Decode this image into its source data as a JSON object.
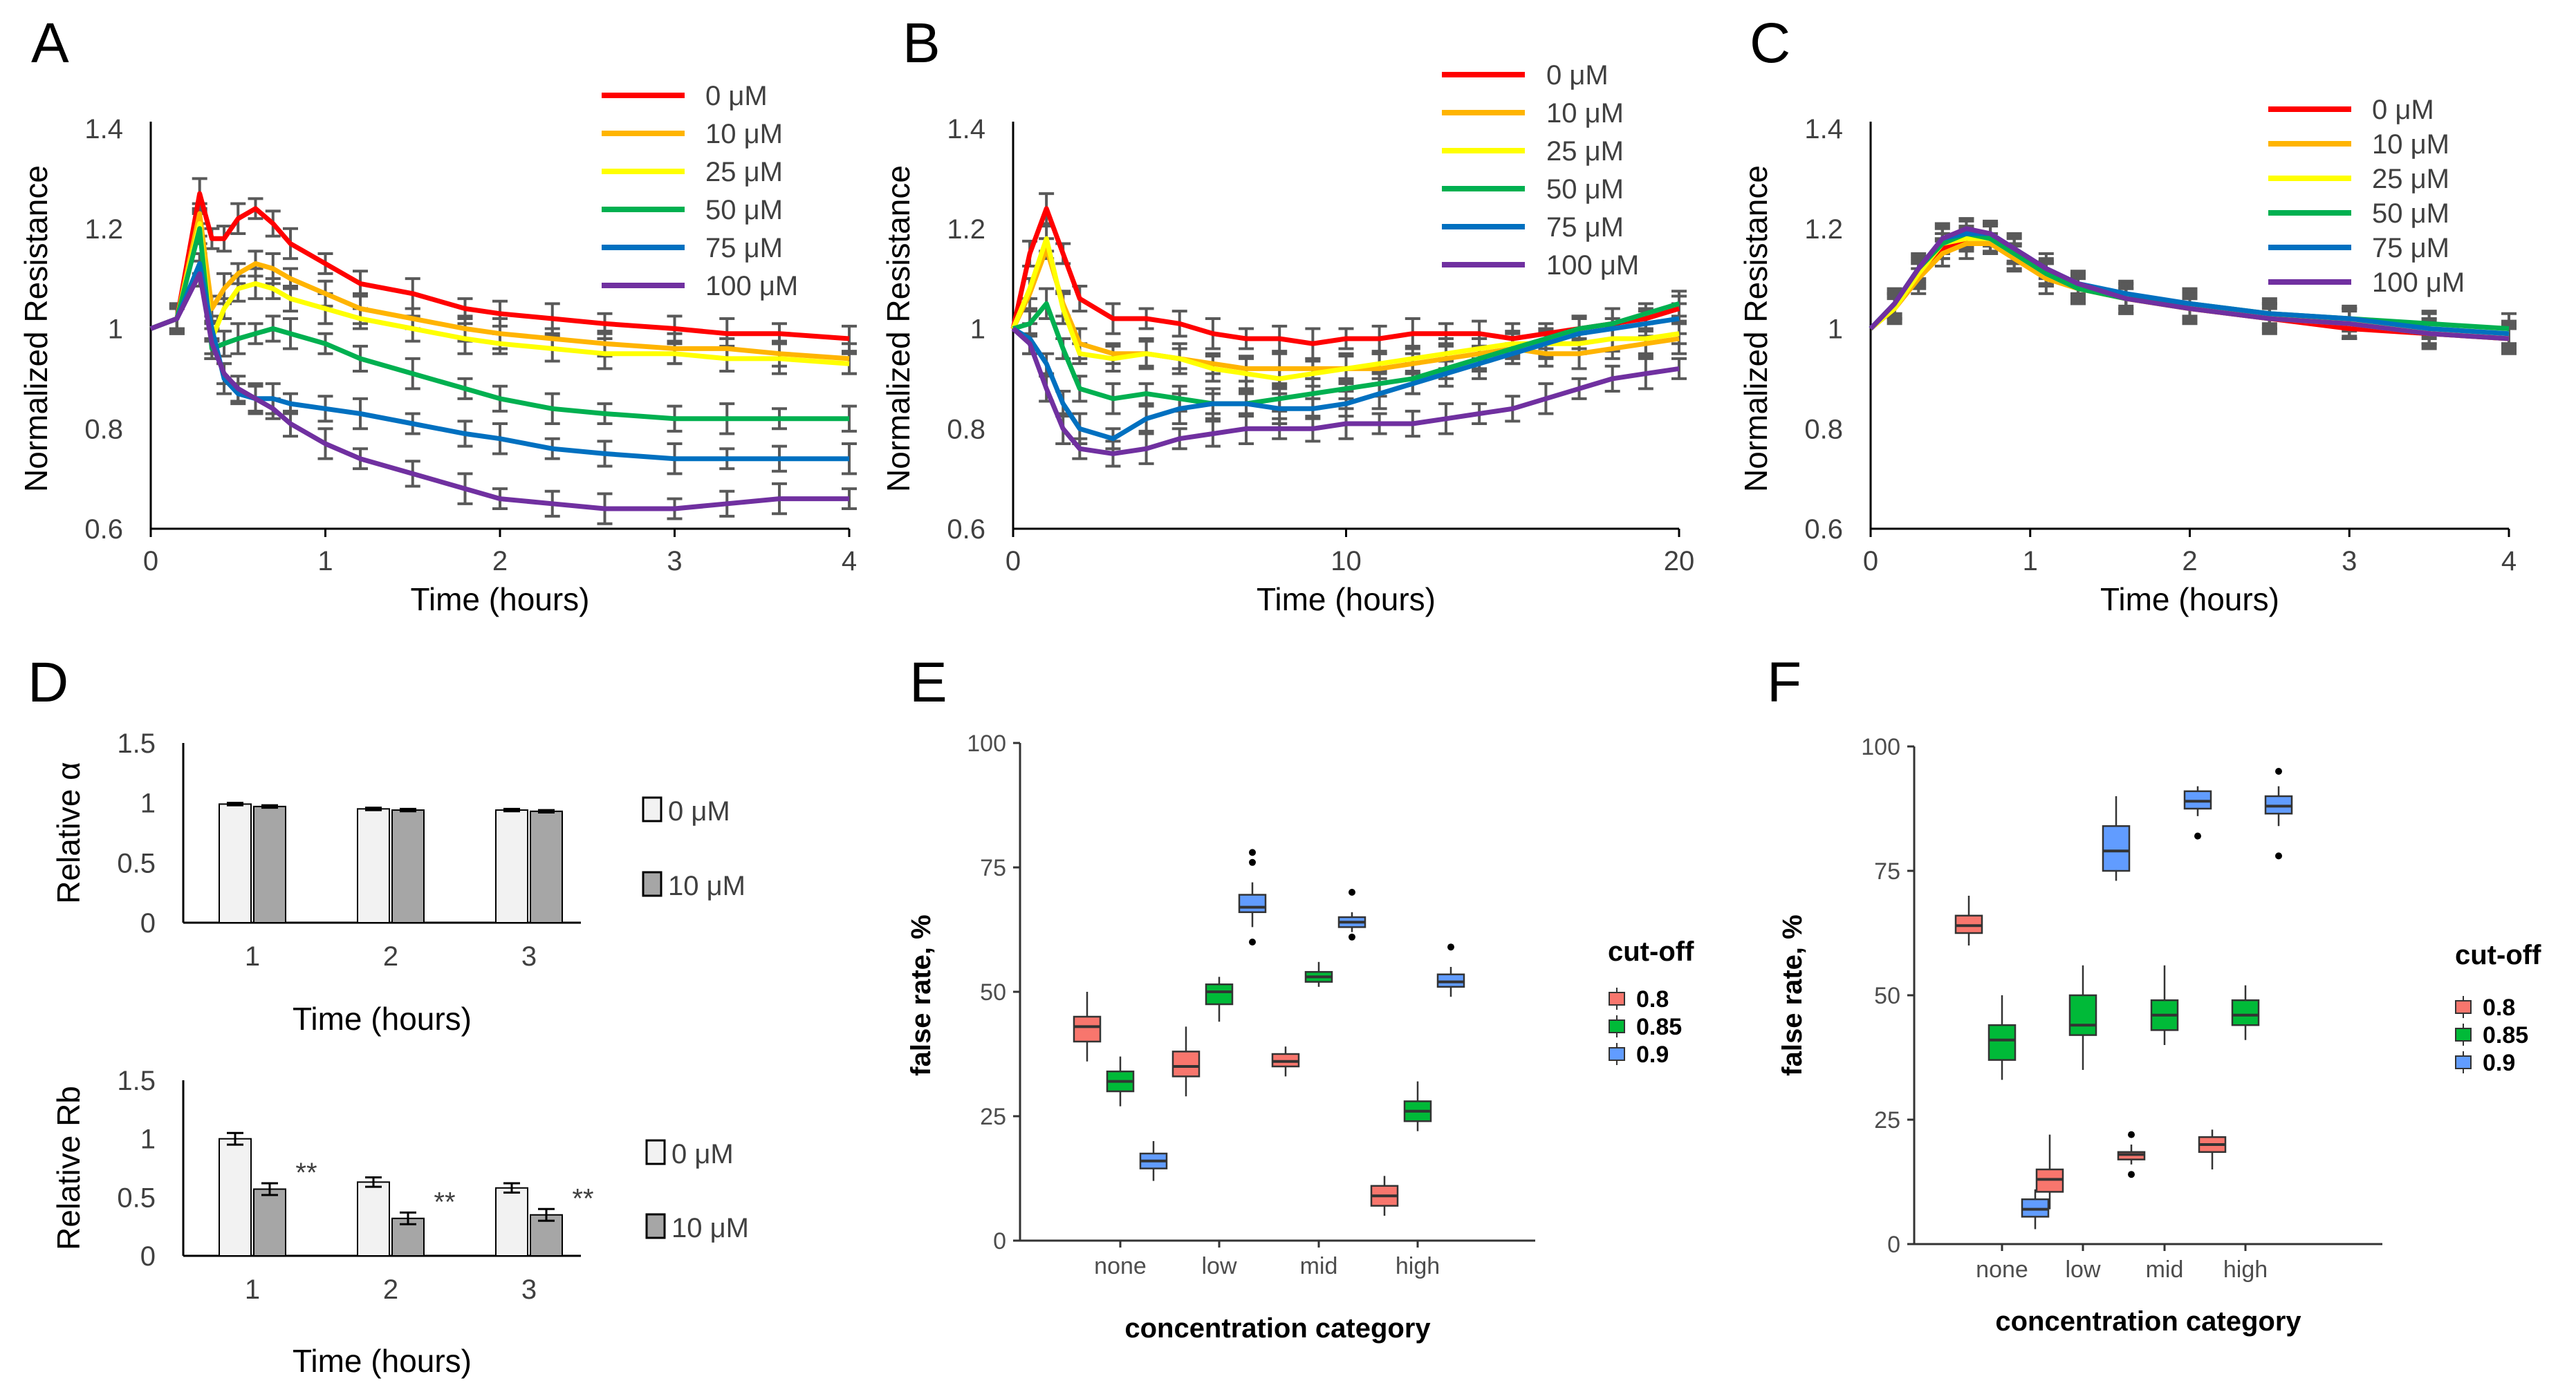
{
  "figure": {
    "panels": [
      "A",
      "B",
      "C",
      "D",
      "E",
      "F"
    ]
  },
  "chart_data": [
    {
      "id": "A",
      "type": "line",
      "panel_label": "A",
      "xlabel": "Time (hours)",
      "ylabel": "Normalized Resistance",
      "xlim": [
        0,
        4
      ],
      "ylim": [
        0.6,
        1.4
      ],
      "xticks": [
        "0",
        "1",
        "2",
        "3",
        "4"
      ],
      "yticks": [
        "0.6",
        "0.8",
        "1",
        "1.2",
        "1.4"
      ],
      "x": [
        0,
        0.15,
        0.28,
        0.35,
        0.42,
        0.5,
        0.6,
        0.7,
        0.8,
        1.0,
        1.2,
        1.5,
        1.8,
        2.0,
        2.3,
        2.6,
        3.0,
        3.3,
        3.6,
        4.0
      ],
      "series": [
        {
          "name": "0 μM",
          "color": "#ff0000",
          "values": [
            1.0,
            1.02,
            1.27,
            1.18,
            1.18,
            1.22,
            1.24,
            1.21,
            1.17,
            1.13,
            1.09,
            1.07,
            1.04,
            1.03,
            1.02,
            1.01,
            1.0,
            0.99,
            0.99,
            0.98
          ]
        },
        {
          "name": "10 μM",
          "color": "#ffb400",
          "values": [
            1.0,
            1.02,
            1.23,
            1.04,
            1.08,
            1.11,
            1.13,
            1.12,
            1.1,
            1.07,
            1.04,
            1.02,
            1.0,
            0.99,
            0.98,
            0.97,
            0.96,
            0.96,
            0.95,
            0.94
          ]
        },
        {
          "name": "25 μM",
          "color": "#ffff00",
          "values": [
            1.0,
            1.02,
            1.21,
            0.98,
            1.04,
            1.08,
            1.09,
            1.08,
            1.06,
            1.04,
            1.02,
            1.0,
            0.98,
            0.97,
            0.96,
            0.95,
            0.95,
            0.94,
            0.94,
            0.93
          ]
        },
        {
          "name": "50 μM",
          "color": "#00b050",
          "values": [
            1.0,
            1.02,
            1.2,
            0.96,
            0.97,
            0.98,
            0.99,
            1.0,
            0.99,
            0.97,
            0.94,
            0.91,
            0.88,
            0.86,
            0.84,
            0.83,
            0.82,
            0.82,
            0.82,
            0.82
          ]
        },
        {
          "name": "75 μM",
          "color": "#0070c0",
          "values": [
            1.0,
            1.02,
            1.13,
            1.0,
            0.9,
            0.87,
            0.86,
            0.86,
            0.85,
            0.84,
            0.83,
            0.81,
            0.79,
            0.78,
            0.76,
            0.75,
            0.74,
            0.74,
            0.74,
            0.74
          ]
        },
        {
          "name": "100 μM",
          "color": "#7030a0",
          "values": [
            1.0,
            1.02,
            1.11,
            0.97,
            0.91,
            0.88,
            0.86,
            0.84,
            0.81,
            0.77,
            0.74,
            0.71,
            0.68,
            0.66,
            0.65,
            0.64,
            0.64,
            0.65,
            0.66,
            0.66
          ]
        }
      ],
      "error_bars": true
    },
    {
      "id": "B",
      "type": "line",
      "panel_label": "B",
      "xlabel": "Time (hours)",
      "ylabel": "Normalized Resistance",
      "xlim": [
        0,
        20
      ],
      "ylim": [
        0.6,
        1.4
      ],
      "xticks": [
        "0",
        "10",
        "20"
      ],
      "yticks": [
        "0.6",
        "0.8",
        "1",
        "1.2",
        "1.4"
      ],
      "x": [
        0,
        0.5,
        1,
        1.5,
        2,
        3,
        4,
        5,
        6,
        7,
        8,
        9,
        10,
        11,
        12,
        13,
        14,
        15,
        16,
        17,
        18,
        19,
        20
      ],
      "series": [
        {
          "name": "0 μM",
          "color": "#ff0000",
          "values": [
            1.0,
            1.15,
            1.24,
            1.15,
            1.06,
            1.02,
            1.02,
            1.01,
            0.99,
            0.98,
            0.98,
            0.97,
            0.98,
            0.98,
            0.99,
            0.99,
            0.99,
            0.98,
            0.99,
            1.0,
            1.01,
            1.02,
            1.04
          ]
        },
        {
          "name": "10 μM",
          "color": "#ffb400",
          "values": [
            1.0,
            1.07,
            1.16,
            1.05,
            0.97,
            0.95,
            0.95,
            0.94,
            0.93,
            0.92,
            0.92,
            0.92,
            0.92,
            0.92,
            0.93,
            0.94,
            0.95,
            0.96,
            0.95,
            0.95,
            0.96,
            0.97,
            0.98
          ]
        },
        {
          "name": "25 μM",
          "color": "#ffff00",
          "values": [
            1.0,
            1.08,
            1.18,
            1.04,
            0.95,
            0.94,
            0.95,
            0.94,
            0.92,
            0.91,
            0.9,
            0.91,
            0.92,
            0.93,
            0.94,
            0.95,
            0.96,
            0.97,
            0.97,
            0.97,
            0.98,
            0.98,
            0.99
          ]
        },
        {
          "name": "50 μM",
          "color": "#00b050",
          "values": [
            1.0,
            1.01,
            1.05,
            0.96,
            0.88,
            0.86,
            0.87,
            0.86,
            0.85,
            0.85,
            0.86,
            0.87,
            0.88,
            0.89,
            0.9,
            0.92,
            0.94,
            0.96,
            0.98,
            1.0,
            1.01,
            1.03,
            1.05
          ]
        },
        {
          "name": "75 μM",
          "color": "#0070c0",
          "values": [
            1.0,
            0.98,
            0.93,
            0.85,
            0.8,
            0.78,
            0.82,
            0.84,
            0.85,
            0.85,
            0.84,
            0.84,
            0.85,
            0.87,
            0.89,
            0.91,
            0.93,
            0.95,
            0.97,
            0.99,
            1.0,
            1.01,
            1.02
          ]
        },
        {
          "name": "100 μM",
          "color": "#7030a0",
          "values": [
            1.0,
            0.97,
            0.88,
            0.8,
            0.76,
            0.75,
            0.76,
            0.78,
            0.79,
            0.8,
            0.8,
            0.8,
            0.81,
            0.81,
            0.81,
            0.82,
            0.83,
            0.84,
            0.86,
            0.88,
            0.9,
            0.91,
            0.92
          ]
        }
      ],
      "error_bars": true
    },
    {
      "id": "C",
      "type": "line",
      "panel_label": "C",
      "xlabel": "Time (hours)",
      "ylabel": "Normalized Resistance",
      "xlim": [
        0,
        4
      ],
      "ylim": [
        0.6,
        1.4
      ],
      "xticks": [
        "0",
        "1",
        "2",
        "3",
        "4"
      ],
      "yticks": [
        "0.6",
        "0.8",
        "1",
        "1.2",
        "1.4"
      ],
      "x": [
        0,
        0.15,
        0.3,
        0.45,
        0.6,
        0.75,
        0.9,
        1.1,
        1.3,
        1.6,
        2.0,
        2.5,
        3.0,
        3.5,
        4.0
      ],
      "series": [
        {
          "name": "0 μM",
          "color": "#ff0000",
          "values": [
            1.0,
            1.04,
            1.1,
            1.16,
            1.18,
            1.18,
            1.15,
            1.11,
            1.08,
            1.06,
            1.04,
            1.02,
            1.0,
            0.99,
            0.98
          ]
        },
        {
          "name": "10 μM",
          "color": "#ffb400",
          "values": [
            1.0,
            1.04,
            1.1,
            1.15,
            1.17,
            1.17,
            1.14,
            1.1,
            1.08,
            1.06,
            1.04,
            1.02,
            1.01,
            0.99,
            0.98
          ]
        },
        {
          "name": "25 μM",
          "color": "#ffff00",
          "values": [
            1.0,
            1.04,
            1.11,
            1.17,
            1.18,
            1.18,
            1.15,
            1.11,
            1.08,
            1.06,
            1.04,
            1.03,
            1.01,
            1.0,
            0.99
          ]
        },
        {
          "name": "50 μM",
          "color": "#00b050",
          "values": [
            1.0,
            1.05,
            1.12,
            1.17,
            1.19,
            1.18,
            1.15,
            1.11,
            1.08,
            1.06,
            1.05,
            1.03,
            1.02,
            1.01,
            1.0
          ]
        },
        {
          "name": "75 μM",
          "color": "#0070c0",
          "values": [
            1.0,
            1.05,
            1.12,
            1.18,
            1.19,
            1.19,
            1.16,
            1.12,
            1.09,
            1.07,
            1.05,
            1.03,
            1.02,
            1.0,
            0.99
          ]
        },
        {
          "name": "100 μM",
          "color": "#7030a0",
          "values": [
            1.0,
            1.05,
            1.12,
            1.18,
            1.2,
            1.19,
            1.16,
            1.12,
            1.09,
            1.06,
            1.04,
            1.02,
            1.01,
            0.99,
            0.98
          ]
        }
      ],
      "error_bars": true
    },
    {
      "id": "D1",
      "type": "bar",
      "panel_label": "D",
      "xlabel": "Time (hours)",
      "ylabel": "Relative α",
      "ylim": [
        0,
        1.5
      ],
      "yticks": [
        "0",
        "0.5",
        "1",
        "1.5"
      ],
      "categories": [
        "1",
        "2",
        "3"
      ],
      "series": [
        {
          "name": "0 μM",
          "color": "#f2f2f2",
          "values": [
            0.99,
            0.95,
            0.94
          ],
          "errors": [
            0.01,
            0.01,
            0.01
          ]
        },
        {
          "name": "10 μM",
          "color": "#a6a6a6",
          "values": [
            0.97,
            0.94,
            0.93
          ],
          "errors": [
            0.01,
            0.01,
            0.01
          ]
        }
      ]
    },
    {
      "id": "D2",
      "type": "bar",
      "panel_label": "",
      "xlabel": "Time (hours)",
      "ylabel": "Relative Rb",
      "ylim": [
        0,
        1.5
      ],
      "yticks": [
        "0",
        "0.5",
        "1",
        "1.5"
      ],
      "categories": [
        "1",
        "2",
        "3"
      ],
      "series": [
        {
          "name": "0 μM",
          "color": "#f2f2f2",
          "values": [
            1.0,
            0.63,
            0.58
          ],
          "errors": [
            0.05,
            0.04,
            0.04
          ]
        },
        {
          "name": "10 μM",
          "color": "#a6a6a6",
          "values": [
            0.57,
            0.32,
            0.35
          ],
          "errors": [
            0.05,
            0.05,
            0.05
          ]
        }
      ],
      "annotations": [
        "**",
        "**",
        "**"
      ]
    },
    {
      "id": "E",
      "type": "box",
      "panel_label": "E",
      "xlabel": "concentration category",
      "ylabel": "false rate, %",
      "ylim": [
        0,
        100
      ],
      "yticks": [
        "0",
        "25",
        "50",
        "75",
        "100"
      ],
      "categories": [
        "none",
        "low",
        "mid",
        "high"
      ],
      "legend_title": "cut-off",
      "groups": [
        {
          "name": "0.8",
          "color": "#f8766d",
          "boxes": [
            {
              "min": 36,
              "q1": 40,
              "median": 43,
              "q3": 45,
              "max": 50,
              "outliers": []
            },
            {
              "min": 29,
              "q1": 33,
              "median": 35,
              "q3": 38,
              "max": 43,
              "outliers": []
            },
            {
              "min": 33,
              "q1": 35,
              "median": 36,
              "q3": 37.5,
              "max": 39,
              "outliers": []
            },
            {
              "min": 5,
              "q1": 7,
              "median": 9,
              "q3": 11,
              "max": 13,
              "outliers": []
            }
          ]
        },
        {
          "name": "0.85",
          "color": "#00ba38",
          "boxes": [
            {
              "min": 27,
              "q1": 30,
              "median": 32,
              "q3": 34,
              "max": 37,
              "outliers": []
            },
            {
              "min": 44,
              "q1": 47.5,
              "median": 50,
              "q3": 51.5,
              "max": 53,
              "outliers": []
            },
            {
              "min": 51,
              "q1": 52,
              "median": 53,
              "q3": 54,
              "max": 56,
              "outliers": []
            },
            {
              "min": 22,
              "q1": 24,
              "median": 26,
              "q3": 28,
              "max": 32,
              "outliers": []
            }
          ]
        },
        {
          "name": "0.9",
          "color": "#619cff",
          "boxes": [
            {
              "min": 12,
              "q1": 14.5,
              "median": 16,
              "q3": 17.5,
              "max": 20,
              "outliers": []
            },
            {
              "min": 63,
              "q1": 66,
              "median": 67,
              "q3": 69.5,
              "max": 72,
              "outliers": [
                78,
                76,
                60
              ]
            },
            {
              "min": 62,
              "q1": 63,
              "median": 64,
              "q3": 65,
              "max": 66,
              "outliers": [
                70,
                61
              ]
            },
            {
              "min": 49,
              "q1": 51,
              "median": 52,
              "q3": 53.5,
              "max": 55,
              "outliers": [
                59
              ]
            }
          ]
        }
      ]
    },
    {
      "id": "F",
      "type": "box",
      "panel_label": "F",
      "xlabel": "concentration category",
      "ylabel": "false rate, %",
      "ylim": [
        0,
        100
      ],
      "yticks": [
        "0",
        "25",
        "50",
        "75",
        "100"
      ],
      "categories": [
        "none",
        "low",
        "mid",
        "high"
      ],
      "legend_title": "cut-off",
      "groups": [
        {
          "name": "0.8",
          "color": "#f8766d",
          "boxes": [
            {
              "min": 60,
              "q1": 62.5,
              "median": 64,
              "q3": 66,
              "max": 70,
              "outliers": []
            },
            {
              "min": 7,
              "q1": 10.5,
              "median": 13,
              "q3": 15,
              "max": 22,
              "outliers": []
            },
            {
              "min": 16,
              "q1": 17,
              "median": 18,
              "q3": 18.5,
              "max": 20,
              "outliers": [
                22,
                14
              ]
            },
            {
              "min": 15,
              "q1": 18.5,
              "median": 20,
              "q3": 21.5,
              "max": 23,
              "outliers": []
            }
          ]
        },
        {
          "name": "0.85",
          "color": "#00ba38",
          "boxes": [
            {
              "min": 33,
              "q1": 37,
              "median": 41,
              "q3": 44,
              "max": 50,
              "outliers": []
            },
            {
              "min": 35,
              "q1": 42,
              "median": 44,
              "q3": 50,
              "max": 56,
              "outliers": []
            },
            {
              "min": 40,
              "q1": 43,
              "median": 46,
              "q3": 49,
              "max": 56,
              "outliers": []
            },
            {
              "min": 41,
              "q1": 44,
              "median": 46,
              "q3": 49,
              "max": 52,
              "outliers": []
            }
          ]
        },
        {
          "name": "0.9",
          "color": "#619cff",
          "boxes": [
            {
              "min": 3,
              "q1": 5.5,
              "median": 7,
              "q3": 9,
              "max": 11,
              "outliers": []
            },
            {
              "min": 73,
              "q1": 75,
              "median": 79,
              "q3": 84,
              "max": 90,
              "outliers": []
            },
            {
              "min": 86,
              "q1": 87.5,
              "median": 89,
              "q3": 91,
              "max": 92,
              "outliers": [
                82
              ]
            },
            {
              "min": 84,
              "q1": 86.5,
              "median": 88,
              "q3": 90,
              "max": 92,
              "outliers": [
                95,
                78
              ]
            }
          ]
        }
      ]
    }
  ]
}
